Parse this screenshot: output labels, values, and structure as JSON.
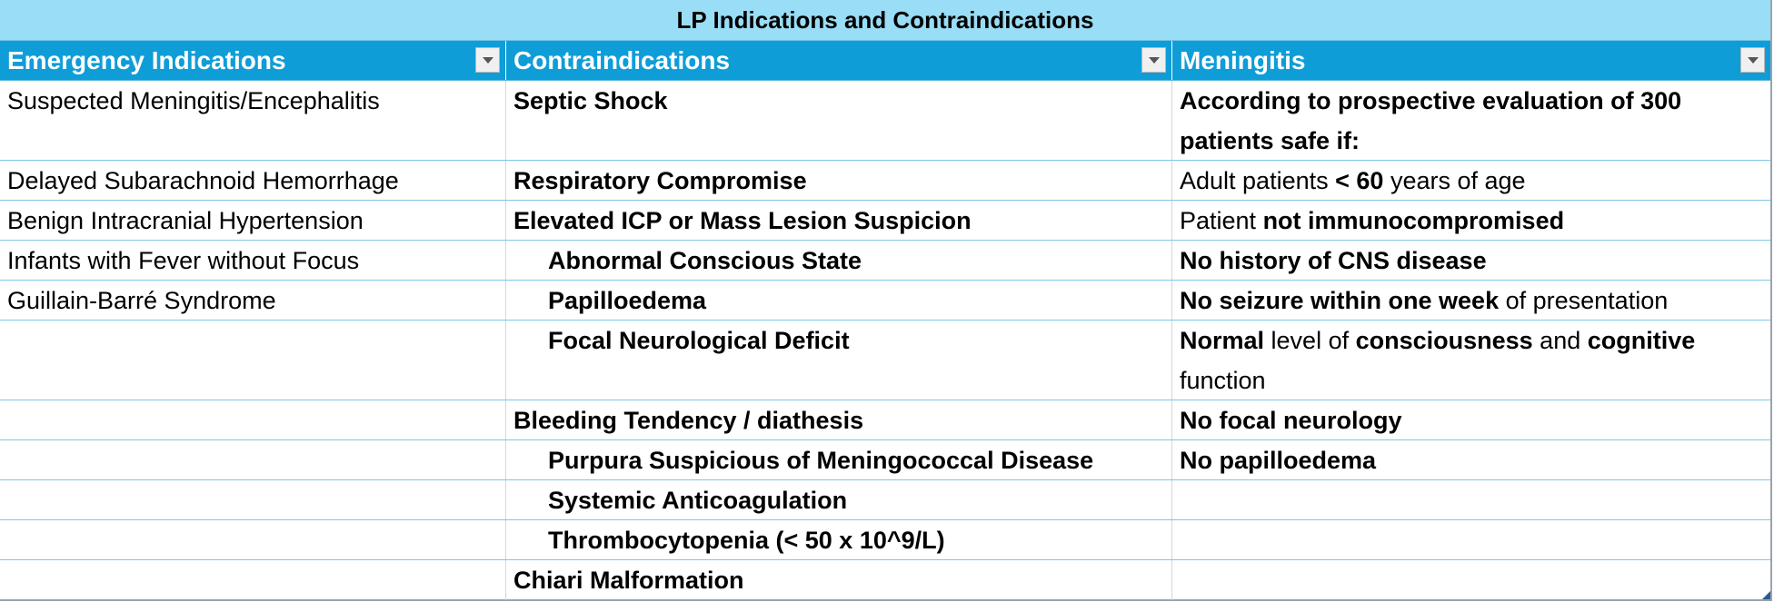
{
  "table": {
    "title": "LP Indications and Contraindications",
    "columns": [
      "Emergency Indications",
      "Contraindications",
      "Meningitis"
    ],
    "rows": [
      {
        "c1": "Suspected Meningitis/Encephalitis",
        "c2": "Septic Shock",
        "c3": "According to prospective evaluation of 300 patients safe if:"
      },
      {
        "c1": "Delayed Subarachnoid Hemorrhage",
        "c2": "Respiratory Compromise",
        "c3_a": "Adult patients ",
        "c3_b": "< 60",
        "c3_c": " years of age"
      },
      {
        "c1": "Benign Intracranial Hypertension",
        "c2": "Elevated ICP or Mass Lesion Suspicion",
        "c3_a": "Patient ",
        "c3_b": "not immunocompromised"
      },
      {
        "c1": "Infants with Fever without Focus",
        "c2": "Abnormal Conscious State",
        "c3": "No history of CNS disease"
      },
      {
        "c1": "Guillain-Barré Syndrome",
        "c2": "Papilloedema",
        "c3_a": "No seizure within one week",
        "c3_b": " of presentation"
      },
      {
        "c1": "",
        "c2": "Focal Neurological Deficit",
        "c3_a": "Normal",
        "c3_b": " level of ",
        "c3_c": "consciousness",
        "c3_d": " and ",
        "c3_e": "cognitive",
        "c3_f": " function"
      },
      {
        "c1": "",
        "c2": "Bleeding Tendency / diathesis",
        "c3": "No focal neurology"
      },
      {
        "c1": "",
        "c2": "Purpura Suspicious of Meningococcal Disease",
        "c3": "No papilloedema"
      },
      {
        "c1": "",
        "c2": "Systemic Anticoagulation",
        "c3": ""
      },
      {
        "c1": "",
        "c2": "Thrombocytopenia (< 50 x 10^9/L)",
        "c3": ""
      },
      {
        "c1": "",
        "c2": "Chiari Malformation",
        "c3": ""
      }
    ]
  },
  "icons": {
    "filter": "dropdown-arrow-icon",
    "resize": "resize-handle-icon"
  },
  "colors": {
    "title_bg": "#99ddf6",
    "header_bg": "#0f9dd8",
    "header_text": "#ffffff",
    "row_border": "#7fc7e6"
  }
}
